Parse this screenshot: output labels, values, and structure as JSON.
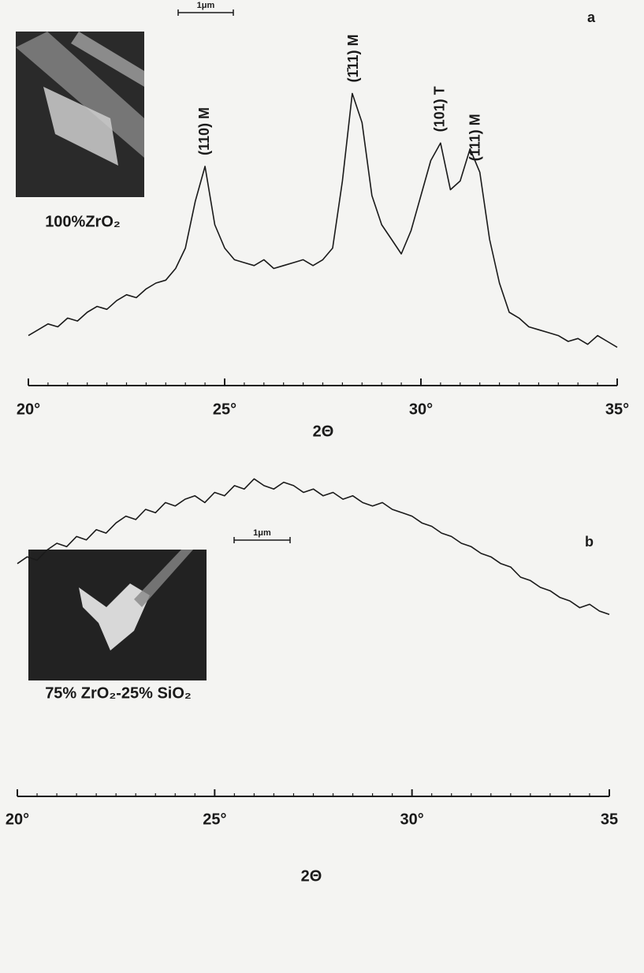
{
  "chart_data": [
    {
      "type": "line",
      "panel": "a",
      "scale_bar": "1μm",
      "inset_label": "100%ZrO₂",
      "xlabel": "2Θ",
      "color": "#1a1a1a",
      "x": [
        20,
        20.25,
        20.5,
        20.75,
        21,
        21.25,
        21.5,
        21.75,
        22,
        22.25,
        22.5,
        22.75,
        23,
        23.25,
        23.5,
        23.75,
        24,
        24.25,
        24.5,
        24.75,
        25,
        25.25,
        25.5,
        25.75,
        26,
        26.25,
        26.5,
        26.75,
        27,
        27.25,
        27.5,
        27.75,
        28,
        28.25,
        28.5,
        28.75,
        29,
        29.25,
        29.5,
        29.75,
        30,
        30.25,
        30.5,
        30.75,
        31,
        31.25,
        31.5,
        31.75,
        32,
        32.25,
        32.5,
        32.75,
        33,
        33.25,
        33.5,
        33.75,
        34,
        34.25,
        34.5,
        34.75,
        35
      ],
      "values": [
        12,
        14,
        16,
        15,
        18,
        17,
        20,
        22,
        21,
        24,
        26,
        25,
        28,
        30,
        31,
        35,
        42,
        58,
        70,
        50,
        42,
        38,
        37,
        36,
        38,
        35,
        36,
        37,
        38,
        36,
        38,
        42,
        65,
        95,
        85,
        60,
        50,
        45,
        40,
        48,
        60,
        72,
        78,
        62,
        65,
        76,
        68,
        45,
        30,
        20,
        18,
        15,
        14,
        13,
        12,
        10,
        11,
        9,
        12,
        10,
        8
      ],
      "xlim": [
        20,
        35
      ],
      "ylim": [
        0,
        100
      ],
      "xticks": [
        {
          "value": 20,
          "label": "20°"
        },
        {
          "value": 25,
          "label": "25°"
        },
        {
          "value": 30,
          "label": "30°"
        },
        {
          "value": 35,
          "label": "35°"
        }
      ],
      "xminorticks": [
        20.5,
        21,
        21.5,
        22,
        22.5,
        23,
        23.5,
        24,
        24.5,
        25.5,
        26,
        26.5,
        27,
        27.5,
        28,
        28.5,
        29,
        29.5,
        30.5,
        31,
        31.5,
        32,
        32.5,
        33,
        33.5,
        34,
        34.5
      ],
      "annotations": [
        {
          "text": "(110) M",
          "x": 24.5
        },
        {
          "text": "(1̄11) M",
          "x": 28.3
        },
        {
          "text": "(101) T",
          "x": 30.5
        },
        {
          "text": "(111) M",
          "x": 31.4
        }
      ]
    },
    {
      "type": "line",
      "panel": "b",
      "scale_bar": "1μm",
      "inset_label": "75% ZrO₂-25% SiO₂",
      "xlabel": "2Θ",
      "color": "#1a1a1a",
      "x": [
        20,
        20.25,
        20.5,
        20.75,
        21,
        21.25,
        21.5,
        21.75,
        22,
        22.25,
        22.5,
        22.75,
        23,
        23.25,
        23.5,
        23.75,
        24,
        24.25,
        24.5,
        24.75,
        25,
        25.25,
        25.5,
        25.75,
        26,
        26.25,
        26.5,
        26.75,
        27,
        27.25,
        27.5,
        27.75,
        28,
        28.25,
        28.5,
        28.75,
        29,
        29.25,
        29.5,
        29.75,
        30,
        30.25,
        30.5,
        30.75,
        31,
        31.25,
        31.5,
        31.75,
        32,
        32.25,
        32.5,
        32.75,
        33,
        33.25,
        33.5,
        33.75,
        34,
        34.25,
        34.5,
        34.75,
        35
      ],
      "values": [
        64,
        66,
        65,
        68,
        70,
        69,
        72,
        71,
        74,
        73,
        76,
        78,
        77,
        80,
        79,
        82,
        81,
        83,
        84,
        82,
        85,
        84,
        87,
        86,
        89,
        87,
        86,
        88,
        87,
        85,
        86,
        84,
        85,
        83,
        84,
        82,
        81,
        82,
        80,
        79,
        78,
        76,
        75,
        73,
        72,
        70,
        69,
        67,
        66,
        64,
        63,
        60,
        59,
        57,
        56,
        54,
        53,
        51,
        52,
        50,
        49
      ],
      "xlim": [
        20,
        35
      ],
      "ylim": [
        0,
        100
      ],
      "xticks": [
        {
          "value": 20,
          "label": "20°"
        },
        {
          "value": 25,
          "label": "25°"
        },
        {
          "value": 30,
          "label": "30°"
        },
        {
          "value": 35,
          "label": "35"
        }
      ],
      "xminorticks": [
        20.5,
        21,
        21.5,
        22,
        22.5,
        23,
        23.5,
        24,
        24.5,
        25.5,
        26,
        26.5,
        27,
        27.5,
        28,
        28.5,
        29,
        29.5,
        30.5,
        31,
        31.5,
        32,
        32.5,
        33,
        33.5,
        34,
        34.5
      ],
      "annotations": []
    }
  ]
}
